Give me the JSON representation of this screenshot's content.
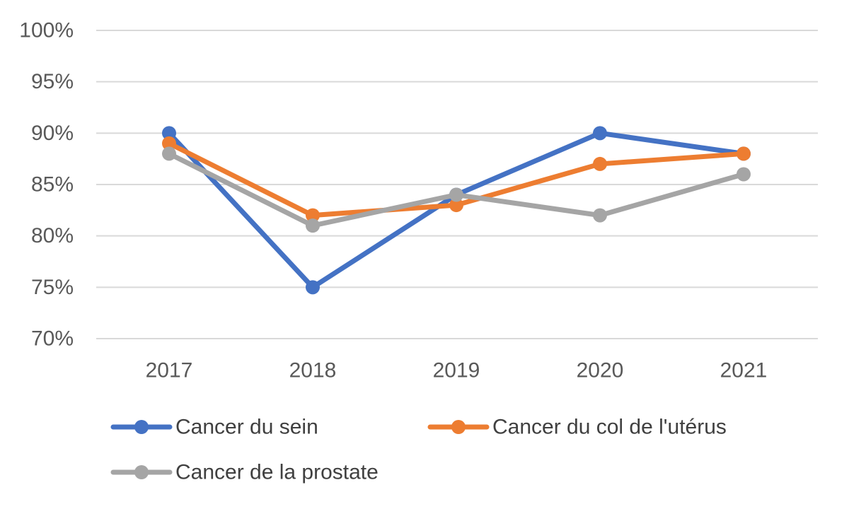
{
  "chart_data": {
    "type": "line",
    "title": "",
    "xlabel": "",
    "ylabel": "",
    "categories": [
      "2017",
      "2018",
      "2019",
      "2020",
      "2021"
    ],
    "y_ticks": [
      "70%",
      "75%",
      "80%",
      "85%",
      "90%",
      "95%",
      "100%"
    ],
    "ylim": [
      70,
      100
    ],
    "grid": true,
    "legend_position": "bottom",
    "series": [
      {
        "name": "Cancer du sein",
        "color": "#4472c4",
        "values": [
          90,
          75,
          84,
          90,
          88
        ]
      },
      {
        "name": "Cancer du col de l'utérus",
        "color": "#ed7d31",
        "values": [
          89,
          82,
          83,
          87,
          88
        ]
      },
      {
        "name": "Cancer de la prostate",
        "color": "#a5a5a5",
        "values": [
          88,
          81,
          84,
          82,
          86
        ]
      }
    ]
  }
}
